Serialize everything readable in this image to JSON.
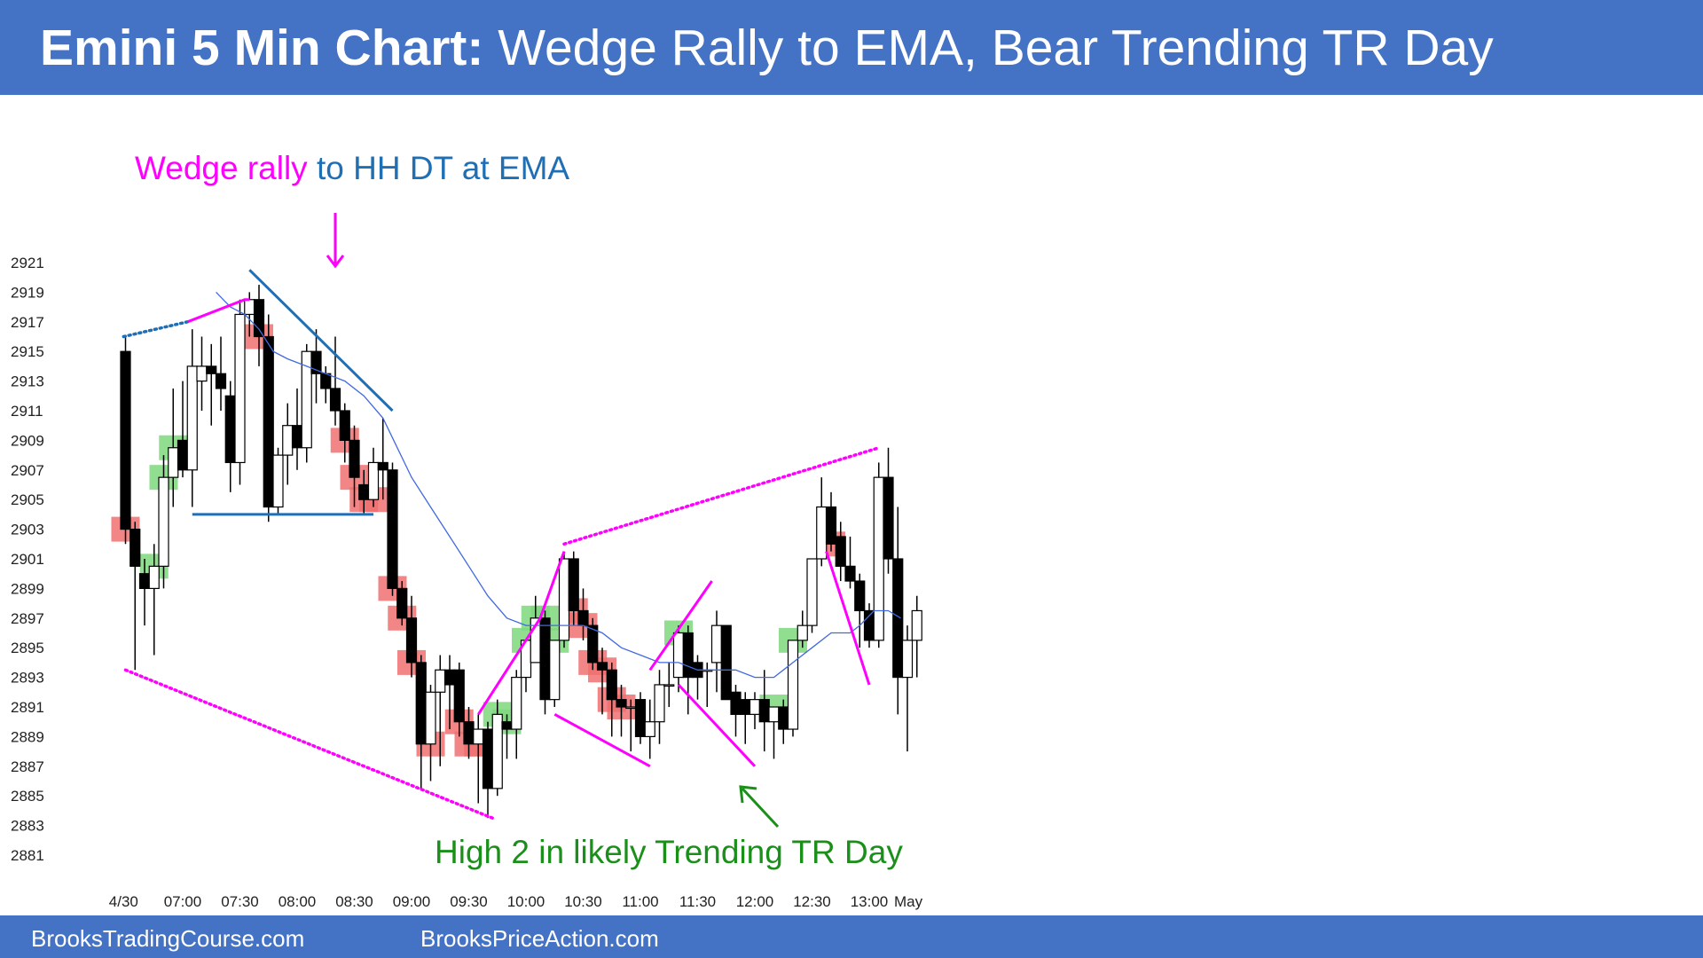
{
  "header": {
    "title_bold": "Emini 5 Min Chart:",
    "title_rest": " Wedge Rally to EMA, Bear Trending TR Day"
  },
  "footer": {
    "link1": "BrooksTradingCourse.com",
    "link2": "BrooksPriceAction.com"
  },
  "colors": {
    "header_bg": "#4472c4",
    "bull_signal": "#7ed87e",
    "bear_signal": "#f07070",
    "ema": "#4169e1",
    "wedge": "#ff00ff",
    "trendline": "#1f6fb5",
    "annotation_green": "#1a8f1a"
  },
  "chart_data": {
    "type": "candlestick",
    "title": "Emini 5 Min Chart: Wedge Rally to EMA, Bear Trending TR Day",
    "y_ticks": [
      2921,
      2919,
      2917,
      2915,
      2913,
      2911,
      2909,
      2907,
      2905,
      2903,
      2901,
      2899,
      2897,
      2895,
      2893,
      2891,
      2889,
      2887,
      2885,
      2883,
      2881
    ],
    "ylim": [
      2880.5,
      2922.5
    ],
    "x_ticks": [
      {
        "label": "4/30",
        "bar": -0.2
      },
      {
        "label": "07:00",
        "bar": 6
      },
      {
        "label": "07:30",
        "bar": 12
      },
      {
        "label": "08:00",
        "bar": 18
      },
      {
        "label": "08:30",
        "bar": 24
      },
      {
        "label": "09:00",
        "bar": 30
      },
      {
        "label": "09:30",
        "bar": 36
      },
      {
        "label": "10:00",
        "bar": 42
      },
      {
        "label": "10:30",
        "bar": 48
      },
      {
        "label": "11:00",
        "bar": 54
      },
      {
        "label": "11:30",
        "bar": 60
      },
      {
        "label": "12:00",
        "bar": 66
      },
      {
        "label": "12:30",
        "bar": 72
      },
      {
        "label": "13:00",
        "bar": 78
      },
      {
        "label": "May",
        "bar": 82.1
      }
    ],
    "x_range": [
      -1.2,
      83.5
    ],
    "ohlc": [
      [
        2915.0,
        2916.0,
        2902.0,
        2903.0
      ],
      [
        2903.0,
        2903.5,
        2893.5,
        2900.5
      ],
      [
        2900.0,
        2901.0,
        2896.5,
        2899.0
      ],
      [
        2899.0,
        2902.0,
        2894.5,
        2900.5
      ],
      [
        2900.5,
        2908.0,
        2899.0,
        2906.5
      ],
      [
        2906.5,
        2912.5,
        2904.5,
        2908.5
      ],
      [
        2909.0,
        2913.0,
        2906.5,
        2907.0
      ],
      [
        2907.0,
        2916.5,
        2904.5,
        2914.0
      ],
      [
        2913.0,
        2916.0,
        2911.0,
        2914.0
      ],
      [
        2914.0,
        2915.5,
        2910.0,
        2913.5
      ],
      [
        2913.5,
        2916.0,
        2911.0,
        2912.5
      ],
      [
        2912.0,
        2913.0,
        2905.5,
        2907.5
      ],
      [
        2907.5,
        2918.5,
        2906.0,
        2917.5
      ],
      [
        2917.5,
        2919.0,
        2916.0,
        2918.5
      ],
      [
        2918.5,
        2919.5,
        2914.0,
        2916.0
      ],
      [
        2916.0,
        2917.5,
        2903.5,
        2904.5
      ],
      [
        2904.5,
        2908.5,
        2904.0,
        2908.0
      ],
      [
        2908.0,
        2911.5,
        2906.0,
        2910.0
      ],
      [
        2910.0,
        2912.5,
        2907.0,
        2908.5
      ],
      [
        2908.5,
        2915.5,
        2907.5,
        2915.0
      ],
      [
        2915.0,
        2916.5,
        2911.5,
        2913.5
      ],
      [
        2913.5,
        2914.0,
        2911.5,
        2912.5
      ],
      [
        2912.5,
        2916.0,
        2910.0,
        2911.0
      ],
      [
        2911.0,
        2911.5,
        2907.5,
        2909.0
      ],
      [
        2909.0,
        2910.0,
        2904.5,
        2906.5
      ],
      [
        2906.0,
        2907.0,
        2904.0,
        2905.0
      ],
      [
        2905.0,
        2908.5,
        2904.5,
        2907.5
      ],
      [
        2907.5,
        2910.5,
        2905.0,
        2907.0
      ],
      [
        2907.0,
        2907.5,
        2898.5,
        2899.0
      ],
      [
        2899.0,
        2899.5,
        2896.5,
        2897.0
      ],
      [
        2897.0,
        2898.5,
        2893.0,
        2894.0
      ],
      [
        2894.0,
        2894.5,
        2885.5,
        2888.5
      ],
      [
        2888.5,
        2892.5,
        2886.0,
        2892.0
      ],
      [
        2892.0,
        2894.5,
        2887.0,
        2893.5
      ],
      [
        2893.5,
        2894.5,
        2889.5,
        2892.5
      ],
      [
        2893.5,
        2894.0,
        2889.0,
        2890.0
      ],
      [
        2890.0,
        2891.0,
        2887.5,
        2888.5
      ],
      [
        2888.5,
        2890.5,
        2884.5,
        2889.5
      ],
      [
        2889.5,
        2890.0,
        2883.5,
        2885.5
      ],
      [
        2885.5,
        2891.5,
        2885.0,
        2890.5
      ],
      [
        2890.0,
        2890.5,
        2887.5,
        2889.5
      ],
      [
        2889.5,
        2893.5,
        2887.5,
        2893.0
      ],
      [
        2893.0,
        2895.5,
        2892.0,
        2895.5
      ],
      [
        2894.0,
        2898.5,
        2894.0,
        2897.0
      ],
      [
        2897.0,
        2897.5,
        2890.5,
        2891.5
      ],
      [
        2891.5,
        2895.5,
        2891.0,
        2895.5
      ],
      [
        2895.5,
        2901.5,
        2895.0,
        2901.0
      ],
      [
        2901.0,
        2901.5,
        2896.5,
        2897.5
      ],
      [
        2897.5,
        2899.0,
        2895.5,
        2896.5
      ],
      [
        2896.5,
        2897.0,
        2893.5,
        2894.0
      ],
      [
        2894.0,
        2895.0,
        2890.5,
        2893.5
      ],
      [
        2893.5,
        2894.0,
        2889.0,
        2891.5
      ],
      [
        2891.5,
        2892.5,
        2889.0,
        2891.0
      ],
      [
        2891.0,
        2891.5,
        2888.0,
        2891.0
      ],
      [
        2891.5,
        2892.0,
        2888.5,
        2889.0
      ],
      [
        2889.0,
        2891.5,
        2887.5,
        2890.0
      ],
      [
        2890.0,
        2893.5,
        2888.5,
        2892.5
      ],
      [
        2892.5,
        2894.0,
        2891.0,
        2892.5
      ],
      [
        2893.0,
        2896.5,
        2892.0,
        2896.0
      ],
      [
        2896.0,
        2896.5,
        2890.5,
        2893.0
      ],
      [
        2894.0,
        2894.5,
        2891.5,
        2893.0
      ],
      [
        2893.5,
        2894.0,
        2891.0,
        2893.5
      ],
      [
        2894.0,
        2897.5,
        2892.0,
        2896.5
      ],
      [
        2896.5,
        2896.5,
        2891.5,
        2891.5
      ],
      [
        2892.0,
        2892.5,
        2889.0,
        2890.5
      ],
      [
        2891.5,
        2892.0,
        2888.5,
        2890.5
      ],
      [
        2890.5,
        2892.0,
        2889.5,
        2891.5
      ],
      [
        2891.5,
        2893.5,
        2888.0,
        2890.0
      ],
      [
        2890.0,
        2891.0,
        2887.5,
        2891.0
      ],
      [
        2891.0,
        2891.5,
        2888.5,
        2889.5
      ],
      [
        2889.5,
        2895.5,
        2889.0,
        2895.5
      ],
      [
        2895.5,
        2897.5,
        2895.0,
        2896.5
      ],
      [
        2896.5,
        2901.0,
        2896.0,
        2901.0
      ],
      [
        2901.0,
        2906.5,
        2900.5,
        2904.5
      ],
      [
        2904.5,
        2905.5,
        2901.5,
        2902.0
      ],
      [
        2902.5,
        2903.5,
        2899.5,
        2900.5
      ],
      [
        2900.5,
        2902.5,
        2899.0,
        2899.5
      ],
      [
        2899.5,
        2900.0,
        2895.0,
        2897.5
      ],
      [
        2897.5,
        2898.0,
        2895.0,
        2895.5
      ],
      [
        2895.5,
        2907.5,
        2895.0,
        2906.5
      ],
      [
        2906.5,
        2908.5,
        2900.0,
        2901.0
      ],
      [
        2901.0,
        2904.5,
        2890.5,
        2893.0
      ],
      [
        2893.0,
        2896.5,
        2888.0,
        2895.5
      ],
      [
        2895.5,
        2898.5,
        2893.0,
        2897.5
      ]
    ],
    "ema": [
      [
        9.5,
        2919.0
      ],
      [
        11,
        2918.0
      ],
      [
        12.5,
        2917.5
      ],
      [
        14,
        2916.5
      ],
      [
        15.5,
        2915.0
      ],
      [
        17,
        2914.5
      ],
      [
        19,
        2914.0
      ],
      [
        21,
        2913.5
      ],
      [
        23,
        2913.0
      ],
      [
        25,
        2912.0
      ],
      [
        27,
        2910.5
      ],
      [
        28.5,
        2908.5
      ],
      [
        30,
        2906.5
      ],
      [
        32,
        2904.5
      ],
      [
        34,
        2902.5
      ],
      [
        36,
        2900.5
      ],
      [
        38,
        2898.5
      ],
      [
        40,
        2897.0
      ],
      [
        42,
        2896.5
      ],
      [
        44,
        2896.5
      ],
      [
        46,
        2896.5
      ],
      [
        48,
        2896.5
      ],
      [
        50,
        2896.0
      ],
      [
        52,
        2895.0
      ],
      [
        54,
        2894.5
      ],
      [
        56,
        2894.0
      ],
      [
        58,
        2894.0
      ],
      [
        60,
        2893.5
      ],
      [
        62,
        2893.5
      ],
      [
        64,
        2893.5
      ],
      [
        66,
        2893.0
      ],
      [
        68,
        2893.0
      ],
      [
        70,
        2894.0
      ],
      [
        72,
        2895.0
      ],
      [
        74,
        2896.0
      ],
      [
        76,
        2896.0
      ],
      [
        77,
        2896.5
      ],
      [
        78.5,
        2897.5
      ],
      [
        80,
        2897.5
      ],
      [
        81.3,
        2897.0
      ]
    ],
    "bull_signal_bars": [
      3,
      4,
      5,
      39,
      40,
      42,
      43,
      44,
      45,
      58,
      68,
      70
    ],
    "bear_signal_bars": [
      0,
      14,
      23,
      24,
      25,
      26,
      28,
      29,
      30,
      32,
      35,
      36,
      37,
      47,
      48,
      49,
      50,
      51,
      52,
      74
    ],
    "lines": [
      {
        "style": "dotted",
        "color": "wedge",
        "points": [
          [
            0,
            2893.5
          ],
          [
            38.5,
            2883.5
          ]
        ]
      },
      {
        "style": "dotted",
        "color": "trendline",
        "points": [
          [
            -0.2,
            2916.0
          ],
          [
            6.5,
            2917.0
          ]
        ]
      },
      {
        "style": "solid",
        "color": "wedge",
        "points": [
          [
            6.5,
            2917.0
          ],
          [
            12.5,
            2918.5
          ],
          [
            13,
            2918.5
          ]
        ]
      },
      {
        "style": "solid",
        "color": "trendline",
        "points": [
          [
            13,
            2920.5
          ],
          [
            28,
            2911.0
          ]
        ]
      },
      {
        "style": "solid",
        "color": "trendline",
        "points": [
          [
            7,
            2904.0
          ],
          [
            26,
            2904.0
          ]
        ]
      },
      {
        "style": "solid",
        "color": "wedge",
        "points": [
          [
            37,
            2890.5
          ],
          [
            43.5,
            2897.0
          ],
          [
            46,
            2901.5
          ]
        ]
      },
      {
        "style": "dotted",
        "color": "wedge",
        "points": [
          [
            46,
            2902.0
          ],
          [
            79,
            2908.5
          ]
        ]
      },
      {
        "style": "solid",
        "color": "wedge",
        "points": [
          [
            45,
            2890.5
          ],
          [
            55,
            2887.0
          ]
        ]
      },
      {
        "style": "solid",
        "color": "wedge",
        "points": [
          [
            55,
            2893.5
          ],
          [
            61.5,
            2899.5
          ]
        ]
      },
      {
        "style": "solid",
        "color": "wedge",
        "points": [
          [
            58,
            2892.5
          ],
          [
            66,
            2887.0
          ]
        ]
      },
      {
        "style": "solid",
        "color": "wedge",
        "points": [
          [
            73.5,
            2901.5
          ],
          [
            78,
            2892.5
          ]
        ]
      }
    ]
  },
  "annotations": {
    "top_pink": "Wedge rally",
    "top_blue": " to HH DT at EMA",
    "bottom_green": "High 2 in likely Trending TR Day"
  }
}
